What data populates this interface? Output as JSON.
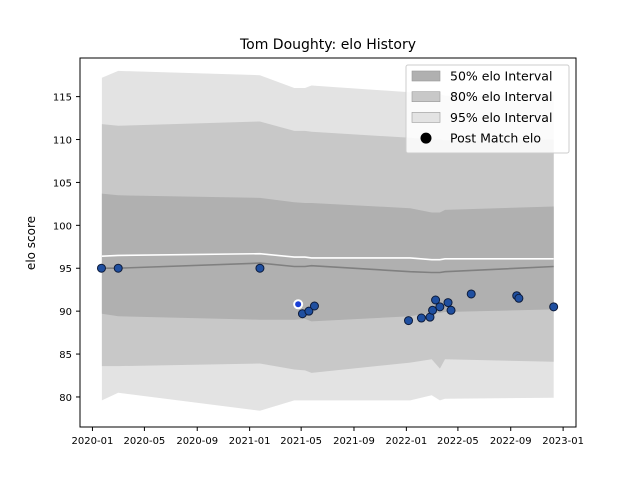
{
  "chart_data": {
    "type": "line",
    "title": "Tom Doughty: elo History",
    "xlabel": "",
    "ylabel": "elo score",
    "xlim": [
      "2019-12-03",
      "2023-01-31"
    ],
    "ylim": [
      76.5,
      119.5
    ],
    "x_ticks": [
      "2020-01",
      "2020-05",
      "2020-09",
      "2021-01",
      "2021-05",
      "2021-09",
      "2022-01",
      "2022-05",
      "2022-09",
      "2023-01"
    ],
    "y_ticks": [
      80,
      85,
      90,
      95,
      100,
      105,
      110,
      115
    ],
    "legend_position": "top-right",
    "legend": [
      {
        "key": "band50",
        "label": "50% elo Interval"
      },
      {
        "key": "band80",
        "label": "80% elo Interval"
      },
      {
        "key": "band95",
        "label": "95% elo Interval"
      },
      {
        "key": "points",
        "label": "Post Match elo"
      }
    ],
    "colors": {
      "band50": "#b0b0b0",
      "band80": "#c8c8c8",
      "band95": "#e3e3e3",
      "mean_line": "#808080",
      "upper_line": "#ffffff",
      "point_fill": "#1f4fa0",
      "point_edge": "#0d1b3a",
      "highlight_fill": "#1a3fd6"
    },
    "bands": {
      "x": [
        "2020-01-23",
        "2020-03-01",
        "2021-01-25",
        "2021-04-15",
        "2021-05-10",
        "2021-05-25",
        "2022-01-10",
        "2022-03-01",
        "2022-03-20",
        "2022-04-01",
        "2022-12-10"
      ],
      "p95_upper": [
        117.2,
        118.0,
        117.5,
        116.0,
        116.0,
        116.3,
        115.5,
        115.3,
        115.3,
        115.1,
        115.2
      ],
      "p80_upper": [
        111.8,
        111.6,
        112.1,
        111.0,
        111.0,
        110.9,
        110.2,
        110.0,
        110.0,
        109.9,
        110.0
      ],
      "p50_upper": [
        103.7,
        103.5,
        103.2,
        102.7,
        102.6,
        102.6,
        102.0,
        101.5,
        101.5,
        101.8,
        102.2
      ],
      "p50_lower": [
        89.7,
        89.4,
        89.0,
        89.0,
        89.1,
        88.8,
        89.4,
        89.8,
        89.8,
        89.9,
        90.2
      ],
      "p80_lower": [
        83.6,
        83.6,
        83.9,
        83.2,
        83.1,
        82.8,
        84.0,
        84.4,
        83.3,
        84.4,
        84.1
      ],
      "p95_lower": [
        79.6,
        80.5,
        78.4,
        79.6,
        79.6,
        79.6,
        79.6,
        80.2,
        79.6,
        79.8,
        79.9
      ]
    },
    "series": [
      {
        "key": "mean",
        "x": [
          "2020-01-23",
          "2020-03-01",
          "2021-01-25",
          "2021-04-15",
          "2021-05-10",
          "2021-05-25",
          "2022-01-10",
          "2022-03-01",
          "2022-03-20",
          "2022-04-01",
          "2022-12-10"
        ],
        "values": [
          95.0,
          95.0,
          95.6,
          95.2,
          95.2,
          95.3,
          94.6,
          94.5,
          94.5,
          94.6,
          95.2
        ]
      },
      {
        "key": "upper_line",
        "x": [
          "2020-01-23",
          "2020-03-01",
          "2021-01-25",
          "2021-04-15",
          "2021-05-10",
          "2021-05-25",
          "2022-01-10",
          "2022-03-01",
          "2022-03-20",
          "2022-04-01",
          "2022-12-10"
        ],
        "values": [
          96.4,
          96.5,
          96.7,
          96.3,
          96.3,
          96.2,
          96.2,
          96.0,
          96.0,
          96.1,
          96.1
        ]
      }
    ],
    "points": [
      {
        "x": "2020-01-22",
        "y": 95.0
      },
      {
        "x": "2020-03-01",
        "y": 95.0
      },
      {
        "x": "2021-01-25",
        "y": 95.0
      },
      {
        "x": "2021-04-24",
        "y": 90.8,
        "highlight": true
      },
      {
        "x": "2021-05-04",
        "y": 89.7
      },
      {
        "x": "2021-05-19",
        "y": 90.0
      },
      {
        "x": "2021-06-01",
        "y": 90.6
      },
      {
        "x": "2022-01-06",
        "y": 88.9
      },
      {
        "x": "2022-02-05",
        "y": 89.2
      },
      {
        "x": "2022-02-25",
        "y": 89.3
      },
      {
        "x": "2022-03-03",
        "y": 90.1
      },
      {
        "x": "2022-03-10",
        "y": 91.3
      },
      {
        "x": "2022-03-20",
        "y": 90.5
      },
      {
        "x": "2022-04-08",
        "y": 91.0
      },
      {
        "x": "2022-04-15",
        "y": 90.1
      },
      {
        "x": "2022-06-01",
        "y": 92.0
      },
      {
        "x": "2022-09-15",
        "y": 91.8
      },
      {
        "x": "2022-09-20",
        "y": 91.5
      },
      {
        "x": "2022-12-10",
        "y": 90.5
      }
    ]
  }
}
